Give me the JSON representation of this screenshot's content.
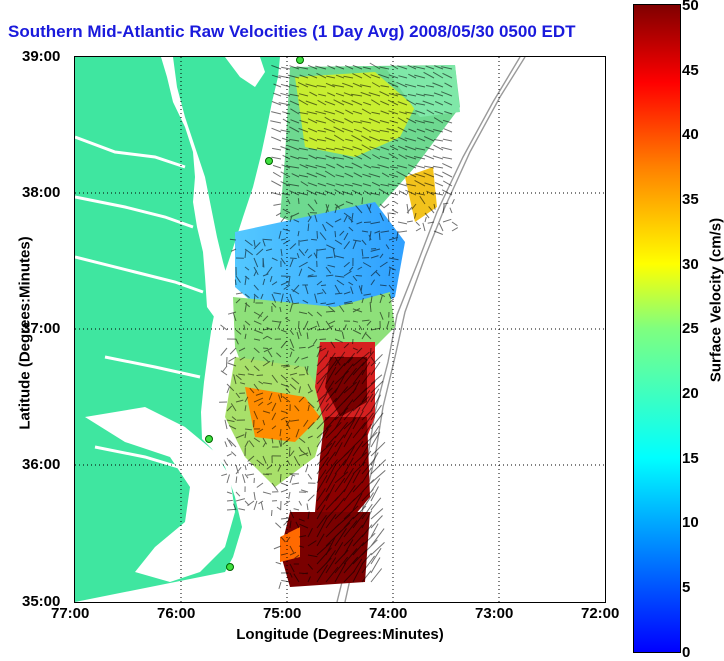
{
  "title": "Southern Mid-Atlantic Raw Velocities (1 Day Avg) 2008/05/30 0500 EDT",
  "x_axis": {
    "label": "Longitude (Degrees:Minutes)",
    "ticks": [
      "77:00",
      "76:00",
      "75:00",
      "74:00",
      "73:00",
      "72:00"
    ]
  },
  "y_axis": {
    "label": "Latitude (Degrees:Minutes)",
    "ticks": [
      "39:00",
      "38:00",
      "37:00",
      "36:00",
      "35:00"
    ]
  },
  "colorbar": {
    "label": "Surface Velocity (cm/s)",
    "min": 0,
    "max": 50,
    "ticks": [
      "50",
      "45",
      "40",
      "35",
      "30",
      "25",
      "20",
      "15",
      "10",
      "5",
      "0"
    ],
    "colormap": "jet"
  },
  "map": {
    "projection": "lon/lat",
    "lon_range": [
      -77,
      -72
    ],
    "lat_range": [
      35,
      39
    ],
    "grid": "dotted",
    "land_color": "#3fe6a0",
    "water_color": "#ffffff",
    "station_marker_color": "#3fe03f",
    "vector_color": "#000000"
  }
}
